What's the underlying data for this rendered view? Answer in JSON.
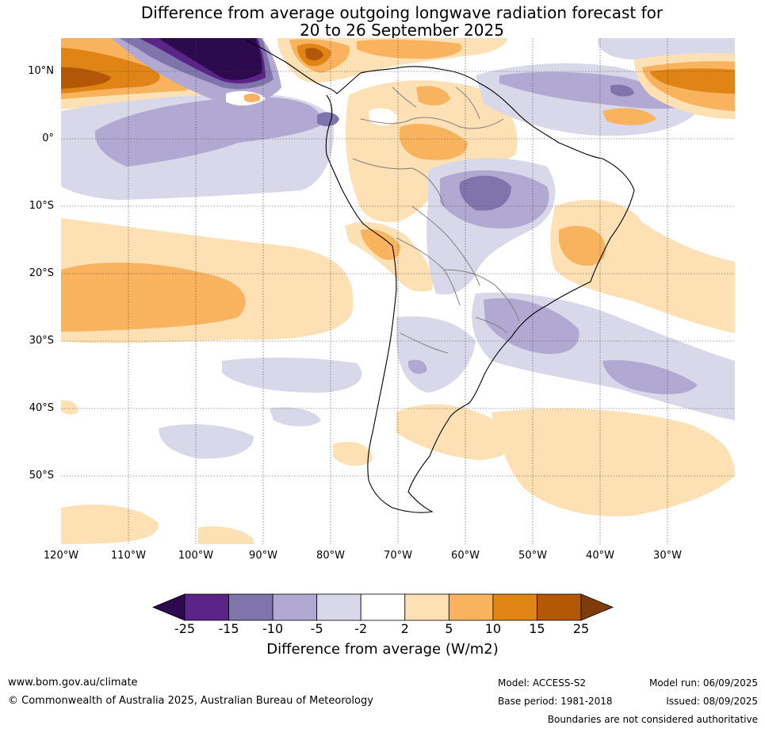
{
  "title_line1": "Difference from average outgoing longwave radiation forecast for",
  "title_line2": "20 to 26 September 2025",
  "latitude_labels": [
    "10°N",
    "0°",
    "10°S",
    "20°S",
    "30°S",
    "40°S",
    "50°S"
  ],
  "longitude_labels": [
    "120°W",
    "110°W",
    "100°W",
    "90°W",
    "80°W",
    "70°W",
    "60°W",
    "50°W",
    "40°W",
    "30°W"
  ],
  "colorbar": {
    "ticks": [
      "-25",
      "-15",
      "-10",
      "-5",
      "-2",
      "2",
      "5",
      "10",
      "15",
      "25"
    ],
    "colors": [
      "#2d0a4e",
      "#5a2489",
      "#8074ac",
      "#b1a9d1",
      "#d8d8ea",
      "#ffffff",
      "#fde0b4",
      "#f9b35e",
      "#e08416",
      "#b35806",
      "#7f3b08"
    ],
    "label": "Difference from average (W/m2)"
  },
  "footer": {
    "website": "www.bom.gov.au/climate",
    "copyright": "© Commonwealth of Australia 2025, Australian Bureau of Meteorology",
    "model": "Model: ACCESS-S2",
    "base_period": "Base period: 1981-2018",
    "model_run": "Model run: 06/09/2025",
    "issued": "Issued: 08/09/2025",
    "disclaimer": "Boundaries are not considered authoritative"
  }
}
